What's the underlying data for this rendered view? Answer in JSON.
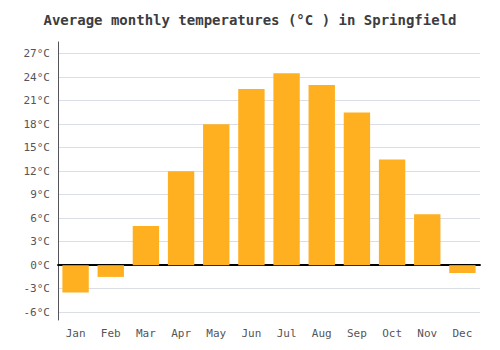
{
  "chart_data": {
    "type": "bar",
    "title": "Average monthly temperatures (°C ) in Springfield",
    "categories": [
      "Jan",
      "Feb",
      "Mar",
      "Apr",
      "May",
      "Jun",
      "Jul",
      "Aug",
      "Sep",
      "Oct",
      "Nov",
      "Dec"
    ],
    "values": [
      -3.5,
      -1.5,
      5.0,
      12.0,
      18.0,
      22.5,
      24.5,
      23.0,
      19.5,
      13.5,
      6.5,
      -1.0
    ],
    "color": "#FFB020",
    "ylim": [
      -7,
      28.5
    ],
    "yticks": [
      {
        "value": -6,
        "label": "-6°C"
      },
      {
        "value": -3,
        "label": "-3°C"
      },
      {
        "value": 0,
        "label": "0°C"
      },
      {
        "value": 3,
        "label": "3°C"
      },
      {
        "value": 6,
        "label": "6°C"
      },
      {
        "value": 9,
        "label": "9°C"
      },
      {
        "value": 12,
        "label": "12°C"
      },
      {
        "value": 15,
        "label": "15°C"
      },
      {
        "value": 18,
        "label": "18°C"
      },
      {
        "value": 21,
        "label": "21°C"
      },
      {
        "value": 24,
        "label": "24°C"
      },
      {
        "value": 27,
        "label": "27°C"
      }
    ],
    "grid": true
  }
}
